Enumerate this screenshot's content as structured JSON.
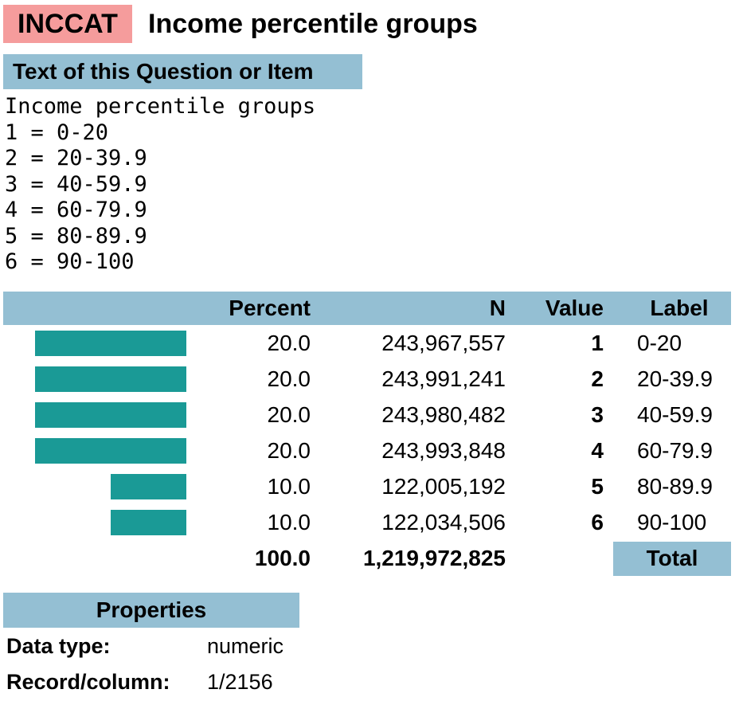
{
  "header": {
    "code": "INCCAT",
    "title": "Income percentile groups"
  },
  "question": {
    "heading": "Text of this Question or Item",
    "lines": [
      "Income percentile groups",
      "1 = 0-20",
      "2 = 20-39.9",
      "3 = 40-59.9",
      "4 = 60-79.9",
      "5 = 80-89.9",
      "6 = 90-100"
    ]
  },
  "table": {
    "columns": [
      "Percent",
      "N",
      "Value",
      "Label"
    ],
    "rows": [
      {
        "percent": 20,
        "percent_label": "20.0",
        "n": "243,967,557",
        "value": 1,
        "label": "0-20"
      },
      {
        "percent": 20,
        "percent_label": "20.0",
        "n": "243,991,241",
        "value": 2,
        "label": "20-39.9"
      },
      {
        "percent": 20,
        "percent_label": "20.0",
        "n": "243,980,482",
        "value": 3,
        "label": "40-59.9"
      },
      {
        "percent": 20,
        "percent_label": "20.0",
        "n": "243,993,848",
        "value": 4,
        "label": "60-79.9"
      },
      {
        "percent": 10,
        "percent_label": "10.0",
        "n": "122,005,192",
        "value": 5,
        "label": "80-89.9"
      },
      {
        "percent": 10,
        "percent_label": "10.0",
        "n": "122,034,506",
        "value": 6,
        "label": "90-100"
      }
    ],
    "total": {
      "percent": "100.0",
      "n": "1,219,972,825",
      "label": "Total"
    }
  },
  "properties": {
    "heading": "Properties",
    "items": [
      {
        "name": "Data type:",
        "value": "numeric"
      },
      {
        "name": "Record/column:",
        "value": "1/2156"
      }
    ]
  }
}
